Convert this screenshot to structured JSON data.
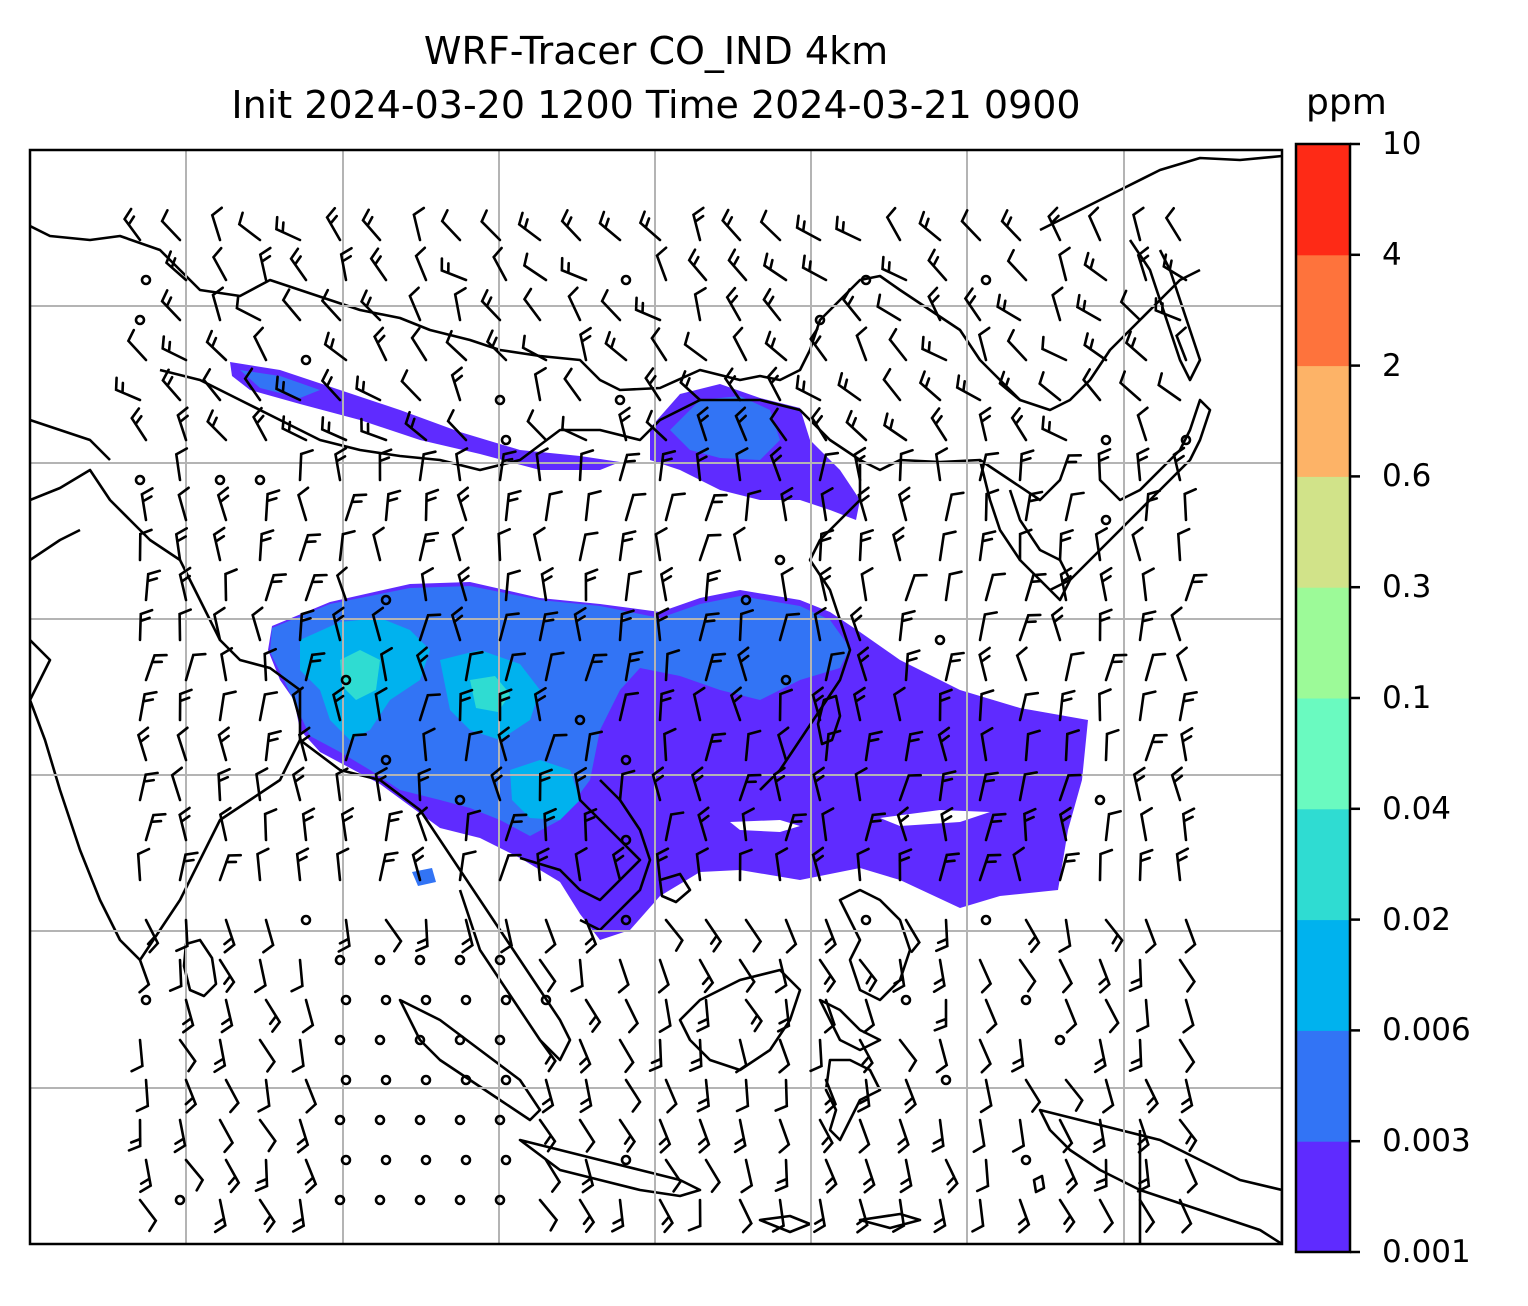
{
  "title": {
    "line1": "WRF-Tracer CO_IND 4km",
    "line2": "Init 2024-03-20 1200 Time 2024-03-21 0900"
  },
  "colorbar": {
    "unit": "ppm",
    "levels": [
      "0.001",
      "0.003",
      "0.006",
      "0.02",
      "0.04",
      "0.1",
      "0.3",
      "0.6",
      "2",
      "4",
      "10"
    ],
    "colors": [
      "#5f2bff",
      "#3274f5",
      "#00b2ee",
      "#2fdcd2",
      "#6afac0",
      "#9cfa98",
      "#d1e389",
      "#fdb367",
      "#fe733c",
      "#fe2a16"
    ]
  },
  "map": {
    "field_colors": {
      "low": "#5f2bff",
      "mid": "#3274f5",
      "high": "#00b2ee",
      "peak": "#2fdcd2"
    },
    "gridline_color": "#b4b4b4"
  }
}
